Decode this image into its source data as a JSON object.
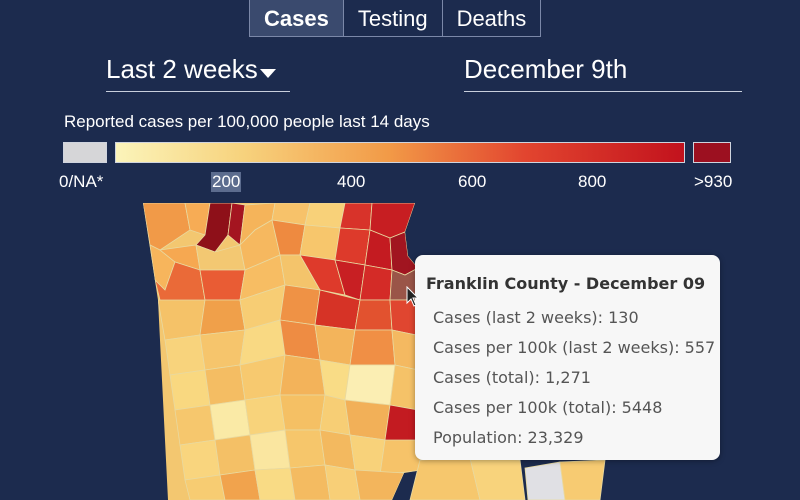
{
  "tabs": [
    {
      "label": "Cases",
      "active": true
    },
    {
      "label": "Testing",
      "active": false
    },
    {
      "label": "Deaths",
      "active": false
    }
  ],
  "period_select": {
    "value": "Last 2 weeks"
  },
  "date_select": {
    "value": "December 9th"
  },
  "legend": {
    "title": "Reported cases per 100,000 people last 14 days",
    "na_label": "0/NA*",
    "ticks": [
      "200",
      "400",
      "600",
      "800"
    ],
    "max_label": ">930",
    "colors": {
      "na": "#d6d6d8",
      "low": "#fbf4ba",
      "mid": "#f29a47",
      "high": "#c2121d",
      "max": "#9c1020"
    }
  },
  "tooltip": {
    "title": "Franklin County - December 09",
    "rows": [
      "Cases (last 2 weeks): 130",
      "Cases per 100k (last 2 weeks): 557",
      "Cases (total): 1,271",
      "Cases per 100k (total): 5448",
      "Population: 23,329"
    ]
  },
  "map": {
    "hovered_county": "Franklin County"
  }
}
